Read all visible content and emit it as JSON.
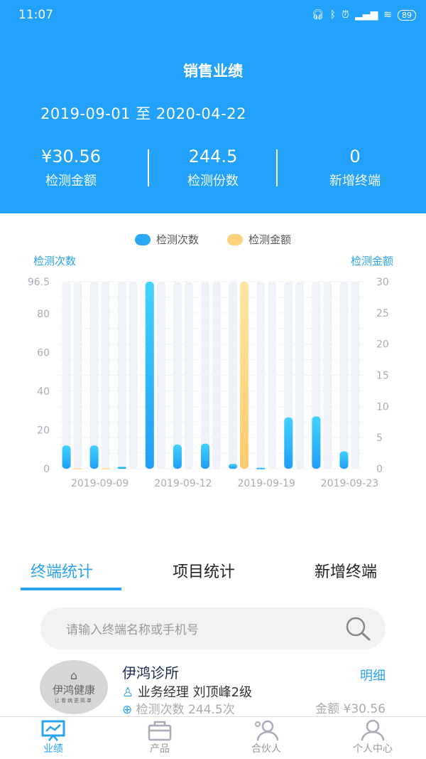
{
  "status_bar": {
    "time": "11:07",
    "battery": "89"
  },
  "header": {
    "title": "销售业绩",
    "date_range": "2019-09-01 至 2020-04-22",
    "stats": [
      {
        "value": "¥30.56",
        "label": "检测金额"
      },
      {
        "value": "244.5",
        "label": "检测份数"
      },
      {
        "value": "0",
        "label": "新增终端"
      }
    ]
  },
  "chart_data": {
    "type": "bar",
    "legend": [
      "检测次数",
      "检测金额"
    ],
    "legend_placement": "top",
    "ylabel_left": "检测次数",
    "ylabel_right": "检测金额",
    "ylim_left": [
      0,
      96.5
    ],
    "yticks_left": [
      "0",
      "20",
      "40",
      "60",
      "80",
      "96.5"
    ],
    "ylim_right": [
      0,
      30
    ],
    "yticks_right": [
      "0",
      "5",
      "10",
      "15",
      "20",
      "25",
      "30"
    ],
    "categories": [
      "",
      "2019-09-09",
      "",
      "",
      "2019-09-12",
      "",
      "",
      "2019-09-19",
      "",
      "",
      "2019-09-23"
    ],
    "series": [
      {
        "name": "检测次数",
        "axis": "left",
        "color": "#29a8f8",
        "values": [
          12,
          12,
          1,
          96.5,
          12.5,
          13,
          2.5,
          0.5,
          26.5,
          27,
          9
        ]
      },
      {
        "name": "检测金额",
        "axis": "right",
        "color": "#fdd27a",
        "values": [
          0.1,
          0.1,
          0,
          0,
          0,
          0,
          30.36,
          0,
          0,
          0,
          0
        ]
      }
    ],
    "grid": true
  },
  "tabs": [
    {
      "label": "终端统计",
      "active": true
    },
    {
      "label": "项目统计"
    },
    {
      "label": "新增终端"
    }
  ],
  "search": {
    "placeholder": "请输入终端名称或手机号"
  },
  "terminals": [
    {
      "logo": "伊鸿健康",
      "logo_sub": "让看病更简单",
      "name": "伊鸿诊所",
      "manager": "业务经理 刘顶峰2级",
      "count": "检测次数 244.5次",
      "detail": "明细",
      "amount": "金额 ¥30.56"
    }
  ],
  "nav": [
    {
      "label": "业绩",
      "icon": "presentation-chart-icon",
      "active": true
    },
    {
      "label": "产品",
      "icon": "bag-icon"
    },
    {
      "label": "合伙人",
      "icon": "partners-icon"
    },
    {
      "label": "个人中心",
      "icon": "user-icon"
    }
  ]
}
